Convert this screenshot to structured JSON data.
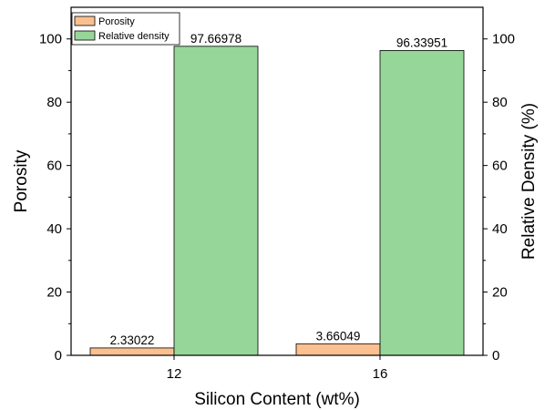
{
  "chart_data": {
    "type": "bar",
    "categories": [
      "12",
      "16"
    ],
    "series": [
      {
        "name": "Porosity",
        "values": [
          2.33022,
          3.66049
        ],
        "value_labels": [
          "2.33022",
          "3.66049"
        ],
        "color": "#fac090",
        "axis": "left"
      },
      {
        "name": "Relative density",
        "values": [
          97.66978,
          96.33951
        ],
        "value_labels": [
          "97.66978",
          "96.33951"
        ],
        "color": "#97d699",
        "axis": "right"
      }
    ],
    "xlabel": "Silicon Content (wt%)",
    "ylabel": "Porosity",
    "ylabel_right": "Relative Density (%)",
    "ylim": [
      0,
      110
    ],
    "ylim_right": [
      0,
      110
    ],
    "yticks": [
      0,
      20,
      40,
      60,
      80,
      100
    ],
    "grid": false,
    "legend_position": "top-left"
  }
}
